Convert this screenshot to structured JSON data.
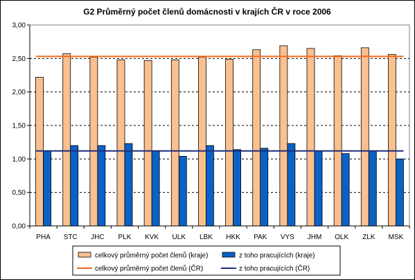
{
  "chart_data": {
    "type": "bar",
    "title": "G2 Průměrný počet členů domácnosti v krajích ČR v roce 2006",
    "categories": [
      "PHA",
      "STC",
      "JHC",
      "PLK",
      "KVK",
      "ULK",
      "LBK",
      "HKK",
      "PAK",
      "VYS",
      "JHM",
      "OLK",
      "ZLK",
      "MSK"
    ],
    "series": [
      {
        "name": "celkový průměrný počet členů (kraje)",
        "color": "#fac090",
        "values": [
          2.22,
          2.57,
          2.52,
          2.48,
          2.47,
          2.48,
          2.52,
          2.49,
          2.63,
          2.69,
          2.65,
          2.54,
          2.66,
          2.56
        ]
      },
      {
        "name": "z toho pracujících (kraje)",
        "color": "#0b62c6",
        "values": [
          1.12,
          1.2,
          1.2,
          1.23,
          1.12,
          1.04,
          1.2,
          1.14,
          1.16,
          1.23,
          1.12,
          1.08,
          1.12,
          1.0
        ]
      }
    ],
    "reference_lines": [
      {
        "name": "celkový průměrný počet členů (ČR)",
        "color": "#f26b1d",
        "value": 2.53
      },
      {
        "name": "z toho pracujících (ČR)",
        "color": "#1f2d7a",
        "value": 1.12
      }
    ],
    "y_ticks": [
      "0,00",
      "0,50",
      "1,00",
      "1,50",
      "2,00",
      "2,50",
      "3,00"
    ],
    "ylim": [
      0,
      3
    ],
    "grid": true,
    "legend_position": "bottom"
  }
}
